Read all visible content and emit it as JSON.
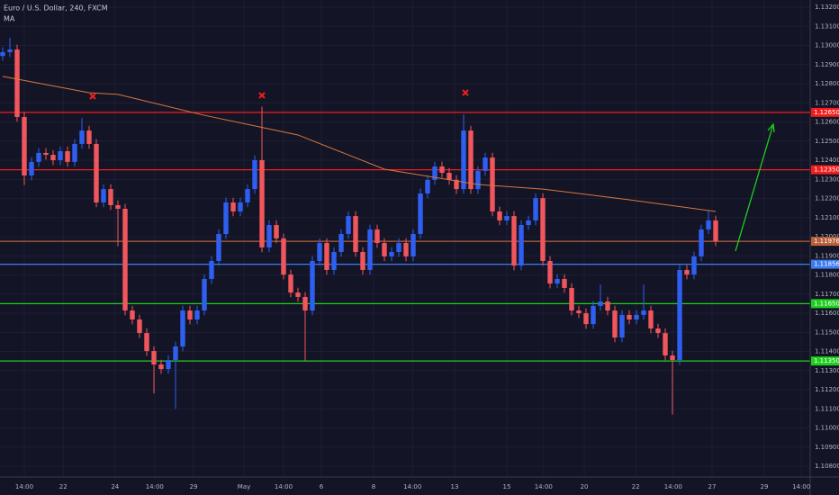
{
  "chart_data": {
    "type": "candlestick",
    "title": "Euro / U.S. Dollar, 240, FXCM",
    "subtitle": "MA",
    "up_color": "#2e5ff0",
    "down_color": "#f0565c",
    "xlim": [
      -0.375,
      112.125
    ],
    "ylim": [
      1.108,
      1.132
    ],
    "yticks": [
      {
        "value": 1.132,
        "label": "1.13200"
      },
      {
        "value": 1.131,
        "label": "1.13100"
      },
      {
        "value": 1.13,
        "label": "1.13000"
      },
      {
        "value": 1.129,
        "label": "1.12900"
      },
      {
        "value": 1.128,
        "label": "1.12800"
      },
      {
        "value": 1.127,
        "label": "1.12700"
      },
      {
        "value": 1.126,
        "label": "1.12600"
      },
      {
        "value": 1.125,
        "label": "1.12500"
      },
      {
        "value": 1.124,
        "label": "1.12400"
      },
      {
        "value": 1.123,
        "label": "1.12300"
      },
      {
        "value": 1.122,
        "label": "1.12200"
      },
      {
        "value": 1.121,
        "label": "1.12100"
      },
      {
        "value": 1.12,
        "label": "1.12000"
      },
      {
        "value": 1.119,
        "label": "1.11900"
      },
      {
        "value": 1.118,
        "label": "1.11800"
      },
      {
        "value": 1.117,
        "label": "1.11700"
      },
      {
        "value": 1.116,
        "label": "1.11600"
      },
      {
        "value": 1.115,
        "label": "1.11500"
      },
      {
        "value": 1.114,
        "label": "1.11400"
      },
      {
        "value": 1.113,
        "label": "1.11300"
      },
      {
        "value": 1.112,
        "label": "1.11200"
      },
      {
        "value": 1.111,
        "label": "1.11100"
      },
      {
        "value": 1.11,
        "label": "1.11000"
      },
      {
        "value": 1.109,
        "label": "1.10900"
      },
      {
        "value": 1.108,
        "label": "1.10800"
      }
    ],
    "xticks": [
      {
        "value": 3,
        "label": "14:00"
      },
      {
        "value": 8.4,
        "label": "22"
      },
      {
        "value": 15.6,
        "label": "24"
      },
      {
        "value": 21.1,
        "label": "14:00"
      },
      {
        "value": 26.5,
        "label": "29"
      },
      {
        "value": 33.5,
        "label": "May"
      },
      {
        "value": 39,
        "label": "14:00"
      },
      {
        "value": 44.25,
        "label": "6"
      },
      {
        "value": 51.5,
        "label": "8"
      },
      {
        "value": 56.9,
        "label": "14:00"
      },
      {
        "value": 62.75,
        "label": "13"
      },
      {
        "value": 70,
        "label": "15"
      },
      {
        "value": 75.1,
        "label": "14:00"
      },
      {
        "value": 80.75,
        "label": "20"
      },
      {
        "value": 87.9,
        "label": "22"
      },
      {
        "value": 93.1,
        "label": "14:00"
      },
      {
        "value": 98.5,
        "label": "27"
      },
      {
        "value": 105.75,
        "label": "29"
      },
      {
        "value": 110.9,
        "label": "14:00"
      }
    ],
    "open": [
      1.12945,
      1.12965,
      1.12979,
      1.12626,
      1.1232,
      1.12391,
      1.12438,
      1.12428,
      1.124,
      1.12447,
      1.12391,
      1.12485,
      1.12555,
      1.12485,
      1.12179,
      1.12249,
      1.12165,
      1.12146,
      1.11614,
      1.11567,
      1.11496,
      1.11402,
      1.11332,
      1.11308,
      1.11355,
      1.11426,
      1.11614,
      1.11567,
      1.11614,
      1.11779,
      1.11873,
      1.12014,
      1.12179,
      1.12132,
      1.12179,
      1.12249,
      1.124,
      1.11944,
      1.12061,
      1.11991,
      1.11802,
      1.11708,
      1.11685,
      1.11614,
      1.11873,
      1.11967,
      1.11826,
      1.1192,
      1.12014,
      1.12108,
      1.1192,
      1.11826,
      1.12038,
      1.11967,
      1.11897,
      1.1192,
      1.11967,
      1.11897,
      1.12014,
      1.12226,
      1.12297,
      1.12367,
      1.12334,
      1.12297,
      1.12249,
      1.12555,
      1.12249,
      1.12344,
      1.12414,
      1.12132,
      1.12085,
      1.12108,
      1.11849,
      1.12061,
      1.12085,
      1.12202,
      1.11873,
      1.11755,
      1.11779,
      1.11732,
      1.11614,
      1.116,
      1.11543,
      1.11638,
      1.11661,
      1.11614,
      1.11473,
      1.11591,
      1.11567,
      1.11591,
      1.11614,
      1.1152,
      1.11496,
      1.11379,
      1.11355,
      1.11826,
      1.11802,
      1.11897,
      1.12038,
      1.12085
    ],
    "high": [
      1.1299,
      1.1304,
      1.13004,
      1.12651,
      1.12416,
      1.12463,
      1.12463,
      1.12453,
      1.12472,
      1.12472,
      1.1251,
      1.1262,
      1.1258,
      1.1251,
      1.12274,
      1.12274,
      1.1219,
      1.12171,
      1.11639,
      1.11592,
      1.11521,
      1.11427,
      1.11357,
      1.1138,
      1.11451,
      1.11639,
      1.11639,
      1.11639,
      1.11804,
      1.11898,
      1.12039,
      1.12204,
      1.12204,
      1.12204,
      1.12274,
      1.12425,
      1.1268,
      1.12086,
      1.12086,
      1.12016,
      1.11827,
      1.11733,
      1.1171,
      1.11898,
      1.11992,
      1.11992,
      1.11945,
      1.12039,
      1.12133,
      1.12133,
      1.11945,
      1.12063,
      1.12063,
      1.11992,
      1.11945,
      1.11992,
      1.11992,
      1.12039,
      1.12251,
      1.12322,
      1.12392,
      1.12392,
      1.12359,
      1.12322,
      1.1264,
      1.1258,
      1.12369,
      1.12439,
      1.12439,
      1.12157,
      1.12133,
      1.12133,
      1.12086,
      1.1211,
      1.12227,
      1.12227,
      1.11898,
      1.11804,
      1.11804,
      1.11757,
      1.11639,
      1.11625,
      1.11663,
      1.1175,
      1.11686,
      1.11639,
      1.11616,
      1.11616,
      1.11616,
      1.1175,
      1.11639,
      1.11545,
      1.11521,
      1.11404,
      1.11851,
      1.11851,
      1.11922,
      1.12063,
      1.1214,
      1.1211
    ],
    "low": [
      1.1292,
      1.1294,
      1.12601,
      1.1227,
      1.12295,
      1.12366,
      1.12403,
      1.12375,
      1.12375,
      1.12366,
      1.12366,
      1.1246,
      1.1246,
      1.12154,
      1.12154,
      1.1214,
      1.1195,
      1.11589,
      1.11542,
      1.11471,
      1.11377,
      1.1118,
      1.11283,
      1.11283,
      1.111,
      1.11401,
      1.11542,
      1.11542,
      1.11589,
      1.11754,
      1.11848,
      1.11989,
      1.12107,
      1.12107,
      1.12154,
      1.12224,
      1.11919,
      1.11919,
      1.11966,
      1.11777,
      1.11683,
      1.1166,
      1.1135,
      1.11589,
      1.11848,
      1.11801,
      1.11801,
      1.11895,
      1.11989,
      1.11895,
      1.11801,
      1.11801,
      1.11942,
      1.11872,
      1.11872,
      1.11895,
      1.11872,
      1.11872,
      1.11989,
      1.12201,
      1.12272,
      1.12309,
      1.12272,
      1.12224,
      1.12224,
      1.12224,
      1.12224,
      1.12319,
      1.12107,
      1.1206,
      1.1206,
      1.11824,
      1.11824,
      1.12036,
      1.1206,
      1.11848,
      1.1173,
      1.1173,
      1.11707,
      1.11589,
      1.11575,
      1.11518,
      1.11518,
      1.11613,
      1.11589,
      1.11448,
      1.11448,
      1.11542,
      1.11542,
      1.11566,
      1.11495,
      1.11471,
      1.11354,
      1.1107,
      1.1133,
      1.11777,
      1.11777,
      1.11872,
      1.12013,
      1.11951
    ],
    "close": [
      1.12965,
      1.12979,
      1.12626,
      1.1232,
      1.12391,
      1.12438,
      1.12428,
      1.124,
      1.12447,
      1.12391,
      1.12485,
      1.12555,
      1.12485,
      1.12179,
      1.12249,
      1.12165,
      1.12146,
      1.11614,
      1.11567,
      1.11496,
      1.11402,
      1.11332,
      1.11308,
      1.11355,
      1.11426,
      1.11614,
      1.11567,
      1.11614,
      1.11779,
      1.11873,
      1.12014,
      1.12179,
      1.12132,
      1.12179,
      1.12249,
      1.124,
      1.11944,
      1.12061,
      1.11991,
      1.11802,
      1.11708,
      1.11685,
      1.11614,
      1.11873,
      1.11967,
      1.11826,
      1.1192,
      1.12014,
      1.12108,
      1.1192,
      1.11826,
      1.12038,
      1.11967,
      1.11897,
      1.1192,
      1.11967,
      1.11897,
      1.12014,
      1.12226,
      1.12297,
      1.12367,
      1.12334,
      1.12297,
      1.12249,
      1.12555,
      1.12249,
      1.12344,
      1.12414,
      1.12132,
      1.12085,
      1.12108,
      1.11849,
      1.12061,
      1.12085,
      1.12202,
      1.11873,
      1.11755,
      1.11779,
      1.11732,
      1.11614,
      1.116,
      1.11543,
      1.11638,
      1.11661,
      1.11614,
      1.11473,
      1.11591,
      1.11567,
      1.11591,
      1.11614,
      1.1152,
      1.11496,
      1.11379,
      1.11355,
      1.11826,
      1.11802,
      1.11897,
      1.12038,
      1.12085,
      1.11976
    ],
    "ma": {
      "color": "#d9773e",
      "x": [
        0,
        12,
        16,
        28,
        41,
        53,
        66,
        75,
        87,
        99
      ],
      "values": [
        1.12838,
        1.12753,
        1.12744,
        1.12635,
        1.12532,
        1.12353,
        1.12273,
        1.12249,
        1.12193,
        1.12132
      ]
    },
    "levels": [
      {
        "value": 1.1265,
        "label": "1.12650",
        "color": "#f21d1d"
      },
      {
        "value": 1.1235,
        "label": "1.12350",
        "color": "#f21d1d"
      },
      {
        "value": 1.11976,
        "label": "1.11976",
        "color": "#b8603a"
      },
      {
        "value": 1.11856,
        "label": "1.11856",
        "color": "#3d7bf0"
      },
      {
        "value": 1.1165,
        "label": "1.11650",
        "color": "#1ed01e"
      },
      {
        "value": 1.1135,
        "label": "1.11350",
        "color": "#1ed01e"
      }
    ]
  }
}
